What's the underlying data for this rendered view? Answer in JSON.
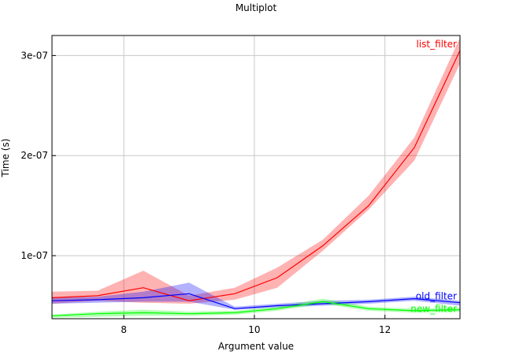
{
  "chart_data": {
    "type": "line",
    "title": "Multiplot",
    "xlabel": "Argument value",
    "ylabel": "Time (s)",
    "xlim": [
      6.9,
      13.15
    ],
    "ylim": [
      3.7e-08,
      3.2e-07
    ],
    "xticks": [
      8,
      10,
      12
    ],
    "xtick_labels": [
      "8",
      "10",
      "12"
    ],
    "yticks": [
      1e-07,
      2e-07,
      3e-07
    ],
    "ytick_labels": [
      "1e-07",
      "2e-07",
      "3e-07"
    ],
    "grid": true,
    "series": [
      {
        "name": "list_filter",
        "color": "#ff0000",
        "x": [
          6.9,
          7.6,
          8.3,
          9.0,
          9.7,
          10.35,
          11.05,
          11.75,
          12.45,
          13.15
        ],
        "y": [
          5.8e-08,
          6e-08,
          6.8e-08,
          5.5e-08,
          6.2e-08,
          7.8e-08,
          1.1e-07,
          1.5e-07,
          2.08e-07,
          3.05e-07
        ],
        "lower": [
          5.2e-08,
          5.5e-08,
          5.3e-08,
          5.2e-08,
          5.6e-08,
          6.8e-08,
          1.05e-07,
          1.46e-07,
          1.95e-07,
          2.92e-07
        ],
        "upper": [
          6.4e-08,
          6.5e-08,
          8.5e-08,
          6e-08,
          6.8e-08,
          8.8e-08,
          1.16e-07,
          1.6e-07,
          2.18e-07,
          3.18e-07
        ]
      },
      {
        "name": "old_filter",
        "color": "#0000ff",
        "x": [
          6.9,
          7.6,
          8.3,
          9.0,
          9.7,
          10.35,
          11.05,
          11.75,
          12.45,
          13.15
        ],
        "y": [
          5.5e-08,
          5.6e-08,
          5.8e-08,
          6.2e-08,
          4.7e-08,
          5e-08,
          5.2e-08,
          5.4e-08,
          5.7e-08,
          5.3e-08
        ],
        "lower": [
          5.2e-08,
          5.3e-08,
          5.4e-08,
          5.4e-08,
          4.6e-08,
          4.8e-08,
          5e-08,
          5.2e-08,
          5.5e-08,
          5e-08
        ],
        "upper": [
          5.8e-08,
          5.9e-08,
          6.4e-08,
          7.3e-08,
          4.9e-08,
          5.2e-08,
          5.5e-08,
          5.6e-08,
          5.9e-08,
          5.5e-08
        ]
      },
      {
        "name": "new_filter",
        "color": "#00ff00",
        "x": [
          6.9,
          7.6,
          8.3,
          9.0,
          9.7,
          10.35,
          11.05,
          11.75,
          12.45,
          13.15
        ],
        "y": [
          4e-08,
          4.2e-08,
          4.3e-08,
          4.2e-08,
          4.3e-08,
          4.7e-08,
          5.4e-08,
          4.7e-08,
          4.5e-08,
          4.6e-08
        ],
        "lower": [
          3.8e-08,
          3.9e-08,
          4e-08,
          4e-08,
          4.1e-08,
          4.5e-08,
          5.2e-08,
          4.5e-08,
          4.3e-08,
          4.4e-08
        ],
        "upper": [
          4.1e-08,
          4.4e-08,
          4.6e-08,
          4.4e-08,
          4.5e-08,
          4.9e-08,
          5.7e-08,
          4.9e-08,
          4.7e-08,
          4.8e-08
        ]
      }
    ]
  }
}
